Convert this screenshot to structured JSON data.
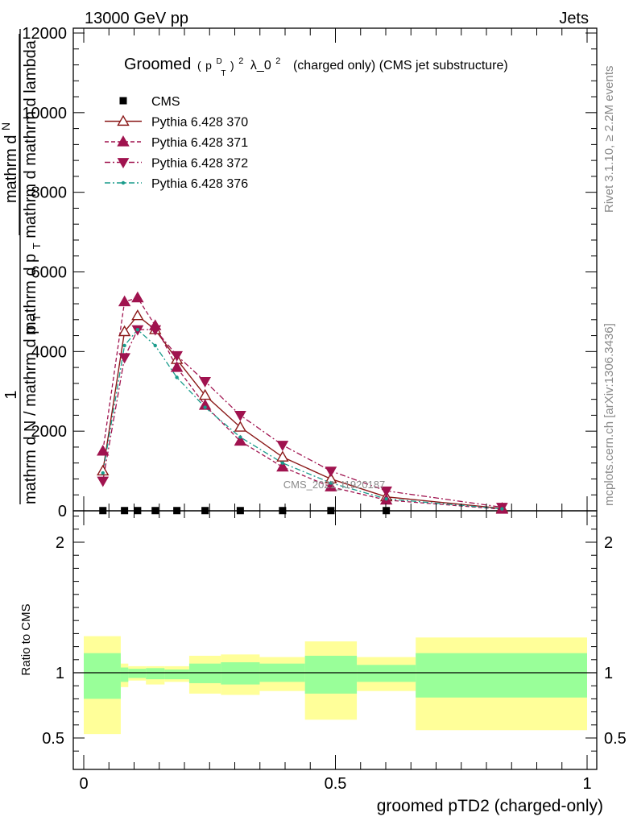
{
  "header": {
    "left": "13000 GeV pp",
    "right": "Jets"
  },
  "title": {
    "prefix": "Groomed",
    "pt_base": "p",
    "pt_sup": "D",
    "pt_sub": "T",
    "power1": "2",
    "mid": "λ_0",
    "power2": "2",
    "suffix": "(charged only) (CMS jet substructure)"
  },
  "side_labels": {
    "right_top": "Rivet 3.1.10, ≥ 2.2M events",
    "right_bottom": "mcplots.cern.ch [arXiv:1306.3436]"
  },
  "watermark": "CMS_2021_I1920187",
  "ylabel_main": {
    "one": "1",
    "den_main": "mathrm d N / mathrm d p",
    "den_sub": "T",
    "num": "mathrm d",
    "num2": "N",
    "den2": "mathrm d p",
    "den2_sub": "T",
    "den2_rest": "mathrm d  mathrm d lambda"
  },
  "ylabel_ratio": "Ratio to CMS",
  "xlabel": "groomed pTD2 (charged-only)",
  "chart_data": [
    {
      "type": "line",
      "panel": "main",
      "xlim": [
        0,
        1
      ],
      "ylim": [
        0,
        12200
      ],
      "yticks": [
        0,
        2000,
        4000,
        6000,
        8000,
        10000,
        12000
      ],
      "ytick_labels": [
        "0",
        "2000",
        "4000",
        "6000",
        "8000",
        "10000",
        "12000"
      ],
      "legend_position": "top-left",
      "series": [
        {
          "name": "CMS",
          "color": "#000000",
          "marker": "square",
          "line": "none",
          "x": [
            0.038,
            0.081,
            0.107,
            0.142,
            0.185,
            0.241,
            0.311,
            0.395,
            0.491,
            0.601
          ],
          "y": [
            5,
            5,
            5,
            5,
            5,
            5,
            5,
            5,
            5,
            5
          ]
        },
        {
          "name": "Pythia 6.428 370",
          "color": "#8b1a1a",
          "marker": "open-triangle-up",
          "line": "solid",
          "x": [
            0.038,
            0.081,
            0.107,
            0.142,
            0.185,
            0.241,
            0.311,
            0.395,
            0.491,
            0.601,
            0.831
          ],
          "y": [
            1000,
            4500,
            4900,
            4550,
            3800,
            2900,
            2100,
            1350,
            800,
            350,
            60
          ]
        },
        {
          "name": "Pythia 6.428 371",
          "color": "#a0134f",
          "marker": "filled-triangle-up",
          "line": "dashed",
          "x": [
            0.038,
            0.081,
            0.107,
            0.142,
            0.185,
            0.241,
            0.311,
            0.395,
            0.491,
            0.601,
            0.831
          ],
          "y": [
            1500,
            5250,
            5350,
            4650,
            3600,
            2650,
            1750,
            1100,
            600,
            270,
            40
          ]
        },
        {
          "name": "Pythia 6.428 372",
          "color": "#a0134f",
          "marker": "filled-triangle-down",
          "line": "dash-dot",
          "x": [
            0.038,
            0.081,
            0.107,
            0.142,
            0.185,
            0.241,
            0.311,
            0.395,
            0.491,
            0.601,
            0.831
          ],
          "y": [
            750,
            3850,
            4550,
            4550,
            3900,
            3250,
            2400,
            1650,
            1000,
            500,
            90
          ]
        },
        {
          "name": "Pythia 6.428 376",
          "color": "#1a9c8c",
          "marker": "dot",
          "line": "dash-dot",
          "x": [
            0.038,
            0.081,
            0.107,
            0.142,
            0.185,
            0.241,
            0.311,
            0.395,
            0.491,
            0.601,
            0.831
          ],
          "y": [
            950,
            4150,
            4550,
            4150,
            3350,
            2600,
            1850,
            1200,
            700,
            300,
            50
          ]
        }
      ]
    },
    {
      "type": "area",
      "panel": "ratio",
      "xlim": [
        0,
        1
      ],
      "ylim": [
        0.35,
        2.3
      ],
      "yticks": [
        0.5,
        1,
        2
      ],
      "ytick_labels": [
        "0.5",
        "1",
        "2"
      ],
      "xticks": [
        0,
        0.5,
        1
      ],
      "xtick_labels": [
        "0",
        "0.5",
        "1"
      ],
      "reference_line": 1,
      "bins": [
        {
          "x0": 0.0,
          "x1": 0.0735,
          "inner": [
            0.8,
            1.15
          ],
          "outer": [
            0.53,
            1.28
          ]
        },
        {
          "x0": 0.0735,
          "x1": 0.0885,
          "inner": [
            0.93,
            1.04
          ],
          "outer": [
            0.89,
            1.07
          ]
        },
        {
          "x0": 0.0885,
          "x1": 0.1235,
          "inner": [
            0.96,
            1.03
          ],
          "outer": [
            0.94,
            1.05
          ]
        },
        {
          "x0": 0.1235,
          "x1": 0.1605,
          "inner": [
            0.95,
            1.035
          ],
          "outer": [
            0.91,
            1.05
          ]
        },
        {
          "x0": 0.1605,
          "x1": 0.2095,
          "inner": [
            0.95,
            1.025
          ],
          "outer": [
            0.93,
            1.05
          ]
        },
        {
          "x0": 0.2095,
          "x1": 0.2725,
          "inner": [
            0.92,
            1.07
          ],
          "outer": [
            0.84,
            1.13
          ]
        },
        {
          "x0": 0.2725,
          "x1": 0.3495,
          "inner": [
            0.91,
            1.08
          ],
          "outer": [
            0.83,
            1.14
          ]
        },
        {
          "x0": 0.3495,
          "x1": 0.4395,
          "inner": [
            0.93,
            1.07
          ],
          "outer": [
            0.86,
            1.12
          ]
        },
        {
          "x0": 0.4395,
          "x1": 0.5425,
          "inner": [
            0.84,
            1.13
          ],
          "outer": [
            0.64,
            1.24
          ]
        },
        {
          "x0": 0.5425,
          "x1": 0.6595,
          "inner": [
            0.93,
            1.06
          ],
          "outer": [
            0.86,
            1.12
          ]
        },
        {
          "x0": 0.6595,
          "x1": 1.0,
          "inner": [
            0.81,
            1.15
          ],
          "outer": [
            0.56,
            1.27
          ]
        }
      ],
      "inner_color": "#99ff99",
      "outer_color": "#ffff99"
    }
  ]
}
